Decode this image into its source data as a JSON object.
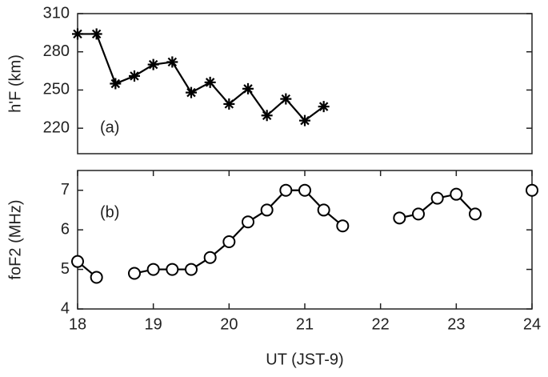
{
  "chart_data": [
    {
      "type": "line",
      "annotation": "(a)",
      "ylabel": "h'F (km)",
      "marker": "star",
      "color": "#000000",
      "x": [
        18,
        18.25,
        18.5,
        18.75,
        19,
        19.25,
        19.5,
        19.75,
        20,
        20.25,
        20.5,
        20.75,
        21,
        21.25
      ],
      "values": [
        294,
        294,
        255,
        261,
        270,
        272,
        248,
        256,
        239,
        251,
        230,
        243,
        226,
        237
      ],
      "xlim": [
        18,
        24
      ],
      "ylim": [
        200,
        310
      ],
      "yticks": [
        220,
        250,
        280,
        310
      ]
    },
    {
      "type": "line",
      "annotation": "(b)",
      "ylabel": "foF2 (MHz)",
      "xlabel": "UT (JST-9)",
      "marker": "circle",
      "color": "#000000",
      "x": [
        18,
        18.25,
        18.5,
        18.75,
        19,
        19.25,
        19.5,
        19.75,
        20,
        20.25,
        20.5,
        20.75,
        21,
        21.25,
        21.5,
        21.75,
        22,
        22.25,
        22.5,
        22.75,
        23,
        23.25,
        23.5,
        23.75,
        24
      ],
      "values": [
        5.2,
        4.8,
        null,
        4.9,
        5.0,
        5.0,
        5.0,
        5.3,
        5.7,
        6.2,
        6.5,
        7.0,
        7.0,
        6.5,
        6.1,
        null,
        null,
        6.3,
        6.4,
        6.8,
        6.9,
        6.4,
        null,
        null,
        7.0
      ],
      "xlim": [
        18,
        24
      ],
      "ylim": [
        4,
        7.5
      ],
      "yticks": [
        4,
        5,
        6,
        7
      ],
      "xticks": [
        18,
        19,
        20,
        21,
        22,
        23,
        24
      ]
    }
  ]
}
